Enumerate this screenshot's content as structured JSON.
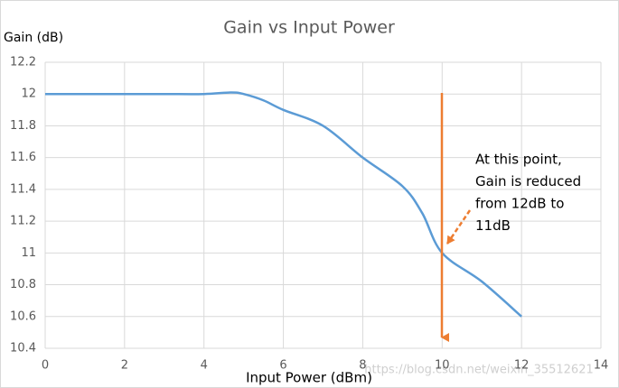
{
  "chart_data": {
    "type": "line",
    "title": "Gain vs Input Power",
    "y_axis_label": "Gain (dB)",
    "x_axis_label": "Input Power (dBm)",
    "x": [
      0,
      1,
      2,
      3,
      4,
      4.7,
      5,
      5.5,
      6,
      7,
      8,
      9,
      9.5,
      10,
      11,
      12
    ],
    "values": [
      12,
      12,
      12,
      12,
      12,
      12.01,
      12,
      11.96,
      11.9,
      11.8,
      11.6,
      11.42,
      11.25,
      11,
      10.82,
      10.6
    ],
    "color": "#5b9bd5",
    "xlim": [
      0,
      14
    ],
    "xticks": [
      0,
      2,
      4,
      6,
      8,
      10,
      12,
      14
    ],
    "ylim": [
      10.4,
      12.2
    ],
    "yticks": [
      10.4,
      10.6,
      10.8,
      11,
      11.2,
      11.4,
      11.6,
      11.8,
      12,
      12.2
    ],
    "grid": true,
    "annotations": [
      "At this point,",
      "Gain is reduced",
      "from 12dB to",
      "11dB"
    ],
    "watermark": "https://blog.csdn.net/weixin_35512621"
  }
}
